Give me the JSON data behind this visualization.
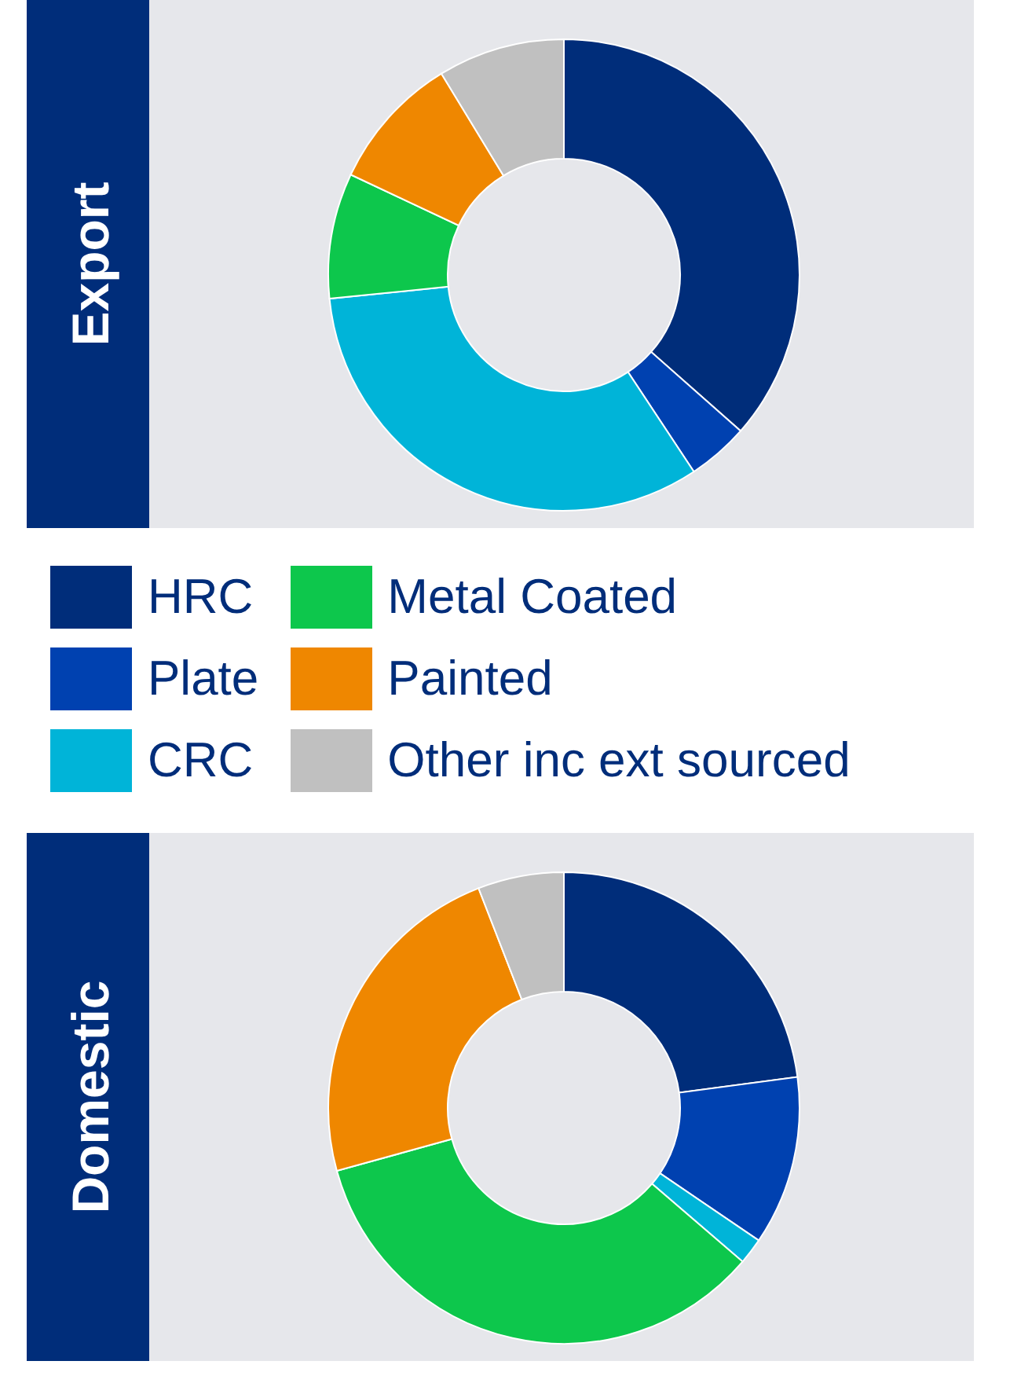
{
  "chart_data": [
    {
      "type": "donut",
      "title": "Export",
      "categories": [
        "HRC",
        "Plate",
        "CRC",
        "Metal Coated",
        "Painted",
        "Other inc ext sourced"
      ],
      "values": [
        36.5,
        4.2,
        32.7,
        8.6,
        9.3,
        8.7
      ],
      "colors": [
        "#002d7a",
        "#0041b0",
        "#00b4d8",
        "#0dc74c",
        "#ef8700",
        "#c0c0c0"
      ],
      "legend": "bottom"
    },
    {
      "type": "donut",
      "title": "Domestic",
      "categories": [
        null,
        null,
        null,
        null,
        null,
        null
      ],
      "values": [
        22.9,
        11.6,
        1.8,
        34.4,
        23.4,
        5.9
      ],
      "colors": [
        "#002d7a",
        "#0041b0",
        "#00b4d8",
        "#0dc74c",
        "#ef8700",
        "#c0c0c0"
      ]
    }
  ]
}
